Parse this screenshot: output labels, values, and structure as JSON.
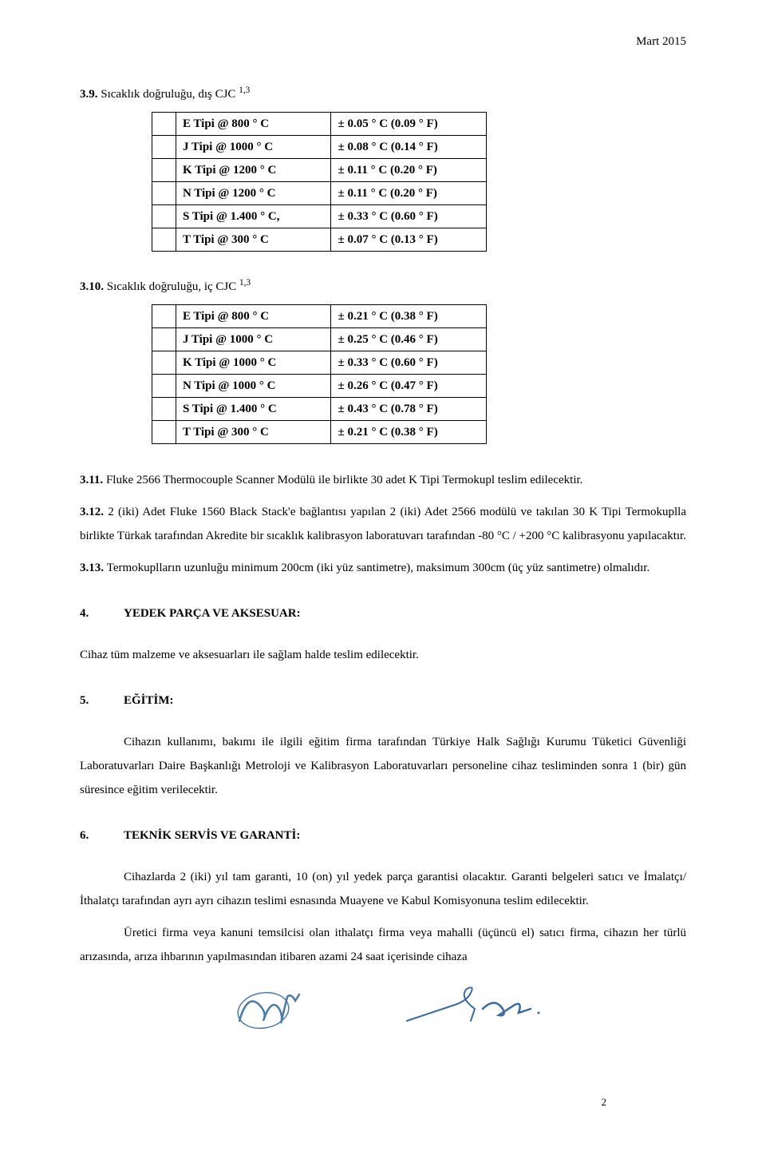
{
  "header": {
    "date": "Mart 2015"
  },
  "section39": {
    "number": "3.9.",
    "text": "Sıcaklık doğruluğu, dış CJC ",
    "sup": "1,3"
  },
  "table1": {
    "rows": [
      {
        "c1": "E Tipi @ 800 ° C",
        "c2": "± 0.05 ° C (0.09 ° F)"
      },
      {
        "c1": "J Tipi @ 1000 ° C",
        "c2": "± 0.08 ° C (0.14 ° F)"
      },
      {
        "c1": "K Tipi @ 1200 ° C",
        "c2": "± 0.11 ° C (0.20 ° F)"
      },
      {
        "c1": "N Tipi @ 1200 ° C",
        "c2": "± 0.11 ° C (0.20 ° F)"
      },
      {
        "c1": "S Tipi @ 1.400 ° C,",
        "c2": "± 0.33 ° C (0.60 ° F)"
      },
      {
        "c1": "T Tipi @ 300 ° C",
        "c2": "± 0.07 ° C (0.13 ° F)"
      }
    ]
  },
  "section310": {
    "number": "3.10.",
    "text": "Sıcaklık doğruluğu, iç CJC ",
    "sup": "1,3"
  },
  "table2": {
    "rows": [
      {
        "c1": "E Tipi @ 800 ° C",
        "c2": "± 0.21 ° C (0.38 ° F)"
      },
      {
        "c1": "J Tipi @ 1000 ° C",
        "c2": "± 0.25 ° C (0.46 ° F)"
      },
      {
        "c1": "K Tipi @ 1000 ° C",
        "c2": "± 0.33 ° C (0.60 ° F)"
      },
      {
        "c1": "N Tipi @ 1000 ° C",
        "c2": "± 0.26 ° C (0.47 ° F)"
      },
      {
        "c1": "S Tipi @ 1.400 ° C",
        "c2": "± 0.43 ° C (0.78 ° F)"
      },
      {
        "c1": "T Tipi @ 300 ° C",
        "c2": "± 0.21 ° C (0.38 ° F)"
      }
    ]
  },
  "p311": {
    "number": "3.11. ",
    "text": "Fluke 2566 Thermocouple Scanner Modülü ile birlikte 30 adet K Tipi Termokupl teslim edilecektir."
  },
  "p312": {
    "number": "3.12. ",
    "text": "2 (iki) Adet Fluke 1560 Black Stack'e bağlantısı yapılan 2 (iki) Adet 2566 modülü ve takılan 30 K Tipi Termokuplla birlikte Türkak tarafından Akredite bir sıcaklık kalibrasyon laboratuvarı tarafından -80 °C  / +200 °C kalibrasyonu yapılacaktır."
  },
  "p313": {
    "number": "3.13. ",
    "text": "Termokuplların uzunluğu minimum 200cm (iki yüz santimetre), maksimum 300cm (üç yüz santimetre) olmalıdır."
  },
  "h4": {
    "num": "4.",
    "title": "YEDEK PARÇA VE AKSESUAR:"
  },
  "p4": "Cihaz tüm malzeme ve aksesuarları ile sağlam halde teslim edilecektir.",
  "h5": {
    "num": "5.",
    "title": "EĞİTİM:"
  },
  "p5": "Cihazın kullanımı, bakımı ile ilgili eğitim firma tarafından Türkiye Halk Sağlığı Kurumu Tüketici Güvenliği Laboratuvarları Daire Başkanlığı Metroloji ve Kalibrasyon Laboratuvarları personeline cihaz tesliminden sonra 1 (bir) gün süresince eğitim verilecektir.",
  "h6": {
    "num": "6.",
    "title": "TEKNİK SERVİS VE GARANTİ:"
  },
  "p6a": "Cihazlarda 2 (iki) yıl tam garanti, 10 (on) yıl yedek parça garantisi olacaktır. Garanti belgeleri satıcı ve İmalatçı/İthalatçı tarafından ayrı ayrı cihazın teslimi esnasında Muayene ve Kabul Komisyonuna teslim edilecektir.",
  "p6b": "Üretici firma veya kanuni temsilcisi olan ithalatçı firma veya mahalli (üçüncü el) satıcı firma, cihazın her türlü arızasında, arıza ihbarının yapılmasından itibaren azami 24 saat içerisinde cihaza",
  "pageNumber": "2"
}
